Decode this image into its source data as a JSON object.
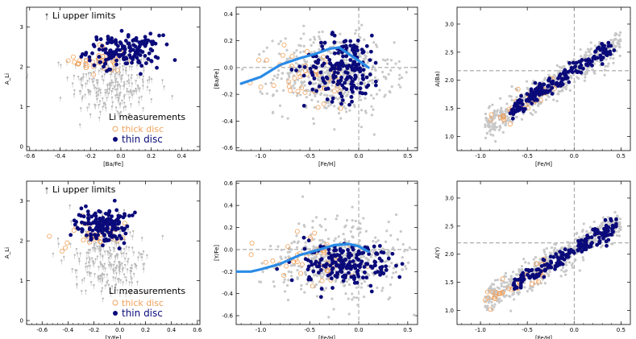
{
  "chart_data": [
    {
      "type": "scatter",
      "panel": "top-left",
      "xlabel": "[Ba/Fe]",
      "ylabel": "A_Li",
      "xlim": [
        -0.62,
        0.52
      ],
      "ylim": [
        -0.1,
        3.5
      ],
      "xticks": [
        "-0.6",
        "-0.4",
        "-0.2",
        "0.0",
        "0.2",
        "0.4"
      ],
      "yticks": [
        "0",
        "1",
        "2",
        "3"
      ],
      "legend": {
        "upper": "Li upper limits",
        "meas": "Li measurements",
        "thick": "thick disc",
        "thin": "thin disc"
      },
      "series": [
        {
          "name": "Li upper limits",
          "style": "upper-limit",
          "center": [
            -0.05,
            1.6
          ],
          "spread": [
            0.14,
            0.45
          ],
          "n": 260
        },
        {
          "name": "thick disc",
          "style": "open-orange",
          "center": [
            -0.12,
            2.15
          ],
          "spread": [
            0.09,
            0.22
          ],
          "n": 40
        },
        {
          "name": "thin disc",
          "style": "filled-navy",
          "center": [
            0.02,
            2.4
          ],
          "spread": [
            0.12,
            0.2
          ],
          "n": 160
        }
      ]
    },
    {
      "type": "scatter",
      "panel": "top-middle",
      "xlabel": "[Fe/H]",
      "ylabel": "[Ba/Fe]",
      "xlim": [
        -1.25,
        0.6
      ],
      "ylim": [
        -0.62,
        0.45
      ],
      "xticks": [
        "-1.0",
        "-0.5",
        "0.0",
        "0.5"
      ],
      "yticks": [
        "-0.6",
        "-0.4",
        "-0.2",
        "0.0",
        "0.2",
        "0.4"
      ],
      "trend_line": {
        "x": [
          -1.2,
          -1.0,
          -0.8,
          -0.6,
          -0.45,
          -0.3,
          -0.2,
          -0.1,
          0.0,
          0.1
        ],
        "y": [
          -0.12,
          -0.07,
          0.02,
          0.07,
          0.1,
          0.14,
          0.15,
          0.1,
          0.05,
          0.0
        ]
      },
      "series": [
        {
          "name": "all",
          "style": "grey",
          "center": [
            -0.25,
            -0.05
          ],
          "spread": [
            0.3,
            0.15
          ],
          "n": 520
        },
        {
          "name": "thick disc",
          "style": "open-orange",
          "center": [
            -0.5,
            -0.08
          ],
          "spread": [
            0.22,
            0.12
          ],
          "n": 45
        },
        {
          "name": "thin disc",
          "style": "filled-navy",
          "center": [
            -0.15,
            0.0
          ],
          "spread": [
            0.2,
            0.12
          ],
          "n": 190
        }
      ]
    },
    {
      "type": "scatter",
      "panel": "top-right",
      "xlabel": "[Fe/H]",
      "ylabel": "A(Ba)",
      "xlim": [
        -1.25,
        0.6
      ],
      "ylim": [
        0.75,
        3.3
      ],
      "xticks": [
        "-1.0",
        "-0.5",
        "0.0",
        "0.5"
      ],
      "yticks": [
        "1.0",
        "1.5",
        "2.0",
        "2.5",
        "3.0"
      ],
      "reference_lines": {
        "x": 0.0,
        "y": 2.17
      },
      "relation": {
        "slope": 1.05,
        "intercept": 2.17
      },
      "series": [
        {
          "name": "all",
          "style": "grey",
          "xrange": [
            -0.95,
            0.5
          ],
          "scatter": 0.13,
          "n": 520
        },
        {
          "name": "thick disc",
          "style": "open-orange",
          "xrange": [
            -0.9,
            -0.2
          ],
          "scatter": 0.08,
          "n": 40
        },
        {
          "name": "thin disc",
          "style": "filled-navy",
          "xrange": [
            -0.7,
            0.45
          ],
          "scatter": 0.08,
          "n": 190
        }
      ]
    },
    {
      "type": "scatter",
      "panel": "bottom-left",
      "xlabel": "[Y/Fe]",
      "ylabel": "A_Li",
      "xlim": [
        -0.72,
        0.62
      ],
      "ylim": [
        -0.1,
        3.5
      ],
      "xticks": [
        "-0.6",
        "-0.4",
        "-0.2",
        "0.0",
        "0.2",
        "0.4",
        "0.6"
      ],
      "yticks": [
        "0",
        "1",
        "2",
        "3"
      ],
      "legend": {
        "upper": "Li upper limits",
        "meas": "Li measurements",
        "thick": "thick disc",
        "thin": "thin disc"
      },
      "series": [
        {
          "name": "Li upper limits",
          "style": "upper-limit",
          "center": [
            -0.08,
            1.6
          ],
          "spread": [
            0.15,
            0.45
          ],
          "n": 260
        },
        {
          "name": "thick disc",
          "style": "open-orange",
          "center": [
            -0.2,
            2.15
          ],
          "spread": [
            0.13,
            0.25
          ],
          "n": 40
        },
        {
          "name": "thin disc",
          "style": "filled-navy",
          "center": [
            -0.12,
            2.4
          ],
          "spread": [
            0.1,
            0.22
          ],
          "n": 160
        }
      ]
    },
    {
      "type": "scatter",
      "panel": "bottom-middle",
      "xlabel": "[Fe/H]",
      "ylabel": "[Y/Fe]",
      "xlim": [
        -1.25,
        0.6
      ],
      "ylim": [
        -0.68,
        0.62
      ],
      "xticks": [
        "-1.0",
        "-0.5",
        "0.0",
        "0.5"
      ],
      "yticks": [
        "-0.6",
        "-0.4",
        "-0.2",
        "0.0",
        "0.2",
        "0.4",
        "0.6"
      ],
      "trend_line": {
        "x": [
          -1.25,
          -1.1,
          -1.0,
          -0.8,
          -0.6,
          -0.4,
          -0.25,
          -0.1,
          0.0,
          0.1
        ],
        "y": [
          -0.2,
          -0.2,
          -0.18,
          -0.13,
          -0.05,
          0.0,
          0.04,
          0.05,
          0.03,
          -0.02
        ]
      },
      "series": [
        {
          "name": "all",
          "style": "grey",
          "center": [
            -0.2,
            -0.1
          ],
          "spread": [
            0.32,
            0.16
          ],
          "n": 520
        },
        {
          "name": "thick disc",
          "style": "open-orange",
          "center": [
            -0.55,
            -0.1
          ],
          "spread": [
            0.25,
            0.12
          ],
          "n": 45
        },
        {
          "name": "thin disc",
          "style": "filled-navy",
          "center": [
            -0.15,
            -0.13
          ],
          "spread": [
            0.2,
            0.1
          ],
          "n": 190
        }
      ]
    },
    {
      "type": "scatter",
      "panel": "bottom-right",
      "xlabel": "[Fe/H]",
      "ylabel": "A(Y)",
      "xlim": [
        -1.25,
        0.6
      ],
      "ylim": [
        0.75,
        3.3
      ],
      "xticks": [
        "-1.0",
        "-0.5",
        "0.0",
        "0.5"
      ],
      "yticks": [
        "1.0",
        "1.5",
        "2.0",
        "2.5",
        "3.0"
      ],
      "reference_lines": {
        "x": 0.0,
        "y": 2.2
      },
      "relation": {
        "slope": 0.95,
        "intercept": 2.08
      },
      "series": [
        {
          "name": "all",
          "style": "grey",
          "xrange": [
            -0.95,
            0.5
          ],
          "scatter": 0.13,
          "n": 520
        },
        {
          "name": "thick disc",
          "style": "open-orange",
          "xrange": [
            -0.95,
            -0.25
          ],
          "scatter": 0.09,
          "n": 40
        },
        {
          "name": "thin disc",
          "style": "filled-navy",
          "xrange": [
            -0.65,
            0.45
          ],
          "scatter": 0.08,
          "n": 190
        }
      ]
    }
  ],
  "colors": {
    "grey": "#c8c8c8",
    "navy": "#0a0a7a",
    "orange": "#f2a15a",
    "trend": "#2a8be6"
  }
}
